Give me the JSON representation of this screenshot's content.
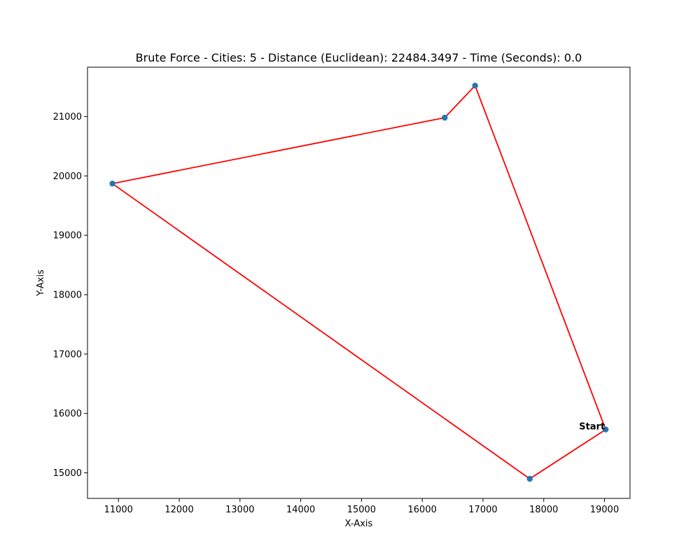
{
  "chart_data": {
    "type": "line",
    "title": "Brute Force - Cities: 5 - Distance (Euclidean): 22484.3497 - Time (Seconds): 0.0",
    "xlabel": "X-Axis",
    "ylabel": "Y-Axis",
    "xlim": [
      10490,
      19420
    ],
    "ylim": [
      14570,
      21830
    ],
    "xticks": [
      11000,
      12000,
      13000,
      14000,
      15000,
      16000,
      17000,
      18000,
      19000
    ],
    "yticks": [
      15000,
      16000,
      17000,
      18000,
      19000,
      20000,
      21000
    ],
    "grid": false,
    "points": [
      {
        "x": 19020,
        "y": 15730
      },
      {
        "x": 16870,
        "y": 21520
      },
      {
        "x": 16370,
        "y": 20980
      },
      {
        "x": 10900,
        "y": 19870
      },
      {
        "x": 17770,
        "y": 14900
      }
    ],
    "route_order": [
      0,
      1,
      2,
      3,
      4,
      0
    ],
    "start_label": "Start",
    "start_index": 0,
    "colors": {
      "route": "#ff0000",
      "points": "#1f77b4"
    }
  }
}
